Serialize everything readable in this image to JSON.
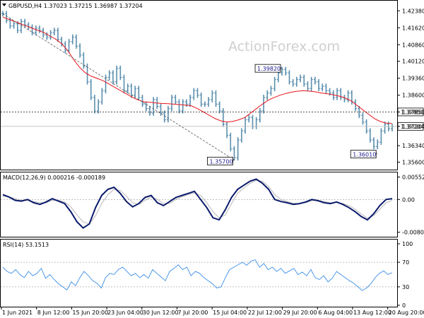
{
  "header": {
    "symbol_line": "GBPUSD,H4  1.37023 1.37215 1.36987 1.37204",
    "macd_label": "MACD(12,26,9) 0.000216 -0.000189",
    "rsi_label": "RSI(14) 53.1513"
  },
  "watermark": "ActionForex.com",
  "colors": {
    "price_bars": "#5b8fae",
    "ma_line": "#e8141b",
    "macd_main": "#0a1a6b",
    "macd_signal": "#b0b0b0",
    "rsi_line": "#3b8fe8",
    "grid_line": "#d0d0d0",
    "annotation_text": "#1a1a8c"
  },
  "chart_data": [
    {
      "type": "line",
      "panel": "price",
      "title": "GBPUSD,H4",
      "y_ticks": [
        "1.42380",
        "1.41620",
        "1.40860",
        "1.40120",
        "1.39360",
        "1.38600",
        "1.37850",
        "1.37204",
        "1.36340",
        "1.35600"
      ],
      "ylim": [
        1.353,
        1.428
      ],
      "x_ticks": [
        "1 Jun 2021",
        "8 Jun 12:00",
        "15 Jun 20:00",
        "23 Jun 04:00",
        "30 Jun 12:00",
        "7 Jul 20:00",
        "15 Jul 04:00",
        "22 Jul 12:00",
        "29 Jul 20:00",
        "6 Aug 04:00",
        "13 Aug 12:00",
        "20 Aug 20:00"
      ],
      "price_series": [
        1.4225,
        1.4195,
        1.417,
        1.418,
        1.415,
        1.419,
        1.4175,
        1.4165,
        1.414,
        1.416,
        1.415,
        1.413,
        1.412,
        1.414,
        1.415,
        1.411,
        1.409,
        1.406,
        1.41,
        1.412,
        1.408,
        1.404,
        1.399,
        1.392,
        1.385,
        1.379,
        1.383,
        1.388,
        1.394,
        1.396,
        1.392,
        1.398,
        1.394,
        1.388,
        1.39,
        1.386,
        1.389,
        1.385,
        1.382,
        1.38,
        1.378,
        1.384,
        1.381,
        1.378,
        1.375,
        1.38,
        1.385,
        1.383,
        1.379,
        1.383,
        1.382,
        1.385,
        1.388,
        1.386,
        1.382,
        1.382,
        1.384,
        1.387,
        1.382,
        1.379,
        1.373,
        1.368,
        1.362,
        1.358,
        1.366,
        1.37,
        1.375,
        1.376,
        1.372,
        1.375,
        1.379,
        1.385,
        1.387,
        1.389,
        1.393,
        1.396,
        1.3975,
        1.396,
        1.392,
        1.391,
        1.393,
        1.394,
        1.391,
        1.389,
        1.393,
        1.392,
        1.389,
        1.39,
        1.388,
        1.387,
        1.385,
        1.388,
        1.385,
        1.384,
        1.387,
        1.383,
        1.38,
        1.377,
        1.374,
        1.37,
        1.366,
        1.363,
        1.365,
        1.37,
        1.373,
        1.371,
        1.372
      ],
      "series": [
        {
          "name": "SMA",
          "values": [
            1.421,
            1.42,
            1.419,
            1.418,
            1.417,
            1.416,
            1.415,
            1.414,
            1.4125,
            1.411,
            1.409,
            1.406,
            1.402,
            1.3985,
            1.396,
            1.3945,
            1.3935,
            1.3925,
            1.391,
            1.3895,
            1.388,
            1.3865,
            1.385,
            1.3838,
            1.383,
            1.3828,
            1.3825,
            1.3823,
            1.3822,
            1.382,
            1.3818,
            1.3815,
            1.3812,
            1.38,
            1.3785,
            1.377,
            1.3755,
            1.3745,
            1.374,
            1.3743,
            1.375,
            1.376,
            1.378,
            1.38,
            1.382,
            1.3838,
            1.385,
            1.386,
            1.3868,
            1.3874,
            1.3878,
            1.388,
            1.3878,
            1.3875,
            1.387,
            1.3866,
            1.3862,
            1.3856,
            1.3848,
            1.3835,
            1.3815,
            1.3795,
            1.3775,
            1.3755,
            1.3742,
            1.3735,
            1.3733
          ]
        }
      ],
      "annotations": [
        {
          "label": "1.39820",
          "x_index": 76,
          "value": 1.3982
        },
        {
          "label": "1.35700",
          "x_index": 63,
          "value": 1.357
        },
        {
          "label": "1.36010",
          "x_index": 102,
          "value": 1.3601
        },
        {
          "label": "1.37850",
          "value": 1.3785
        },
        {
          "label": "1.37204",
          "value": 1.37204
        }
      ]
    },
    {
      "type": "line",
      "panel": "macd",
      "title": "MACD(12,26,9)",
      "y_ticks": [
        "0.00552",
        "0.00",
        "-0.00804"
      ],
      "ylim": [
        -0.0088,
        0.0063
      ],
      "series": [
        {
          "name": "MACD",
          "values": [
            0.0012,
            0.0006,
            -0.0002,
            -0.0004,
            0.0,
            -0.0008,
            -0.0012,
            -0.0006,
            0.0002,
            -0.0004,
            -0.001,
            -0.003,
            -0.0055,
            -0.007,
            -0.006,
            -0.002,
            0.001,
            0.0025,
            0.003,
            0.0015,
            -0.0005,
            -0.0018,
            -0.001,
            0.0005,
            0.001,
            -0.0008,
            -0.0015,
            -0.0005,
            0.0005,
            0.001,
            0.0015,
            0.002,
            0.0,
            -0.002,
            -0.0045,
            -0.005,
            -0.0025,
            0.0005,
            0.0025,
            0.0035,
            0.0045,
            0.005,
            0.004,
            0.0025,
            0.0,
            -0.0005,
            -0.0008,
            -0.0012,
            -0.001,
            -0.0006,
            0.0,
            -0.0003,
            -0.0008,
            -0.001,
            -0.0006,
            -0.0012,
            -0.002,
            -0.003,
            -0.0042,
            -0.005,
            -0.0035,
            -0.0015,
            0.0,
            0.0002
          ]
        },
        {
          "name": "Signal",
          "values": [
            0.0008,
            0.0007,
            0.0002,
            -0.0002,
            -0.0002,
            -0.0005,
            -0.0008,
            -0.0008,
            -0.0002,
            -0.0002,
            -0.0006,
            -0.0018,
            -0.0038,
            -0.0055,
            -0.006,
            -0.004,
            -0.001,
            0.0012,
            0.0025,
            0.0022,
            0.0008,
            -0.0008,
            -0.0012,
            -0.0002,
            0.0006,
            0.0,
            -0.001,
            -0.001,
            0.0,
            0.0007,
            0.0012,
            0.0016,
            0.001,
            -0.0008,
            -0.003,
            -0.0045,
            -0.0038,
            -0.001,
            0.0015,
            0.0028,
            0.004,
            0.0047,
            0.0045,
            0.0032,
            0.0012,
            0.0,
            -0.0005,
            -0.0009,
            -0.001,
            -0.0008,
            -0.0003,
            -0.0002,
            -0.0005,
            -0.0008,
            -0.0007,
            -0.001,
            -0.0015,
            -0.0024,
            -0.0036,
            -0.0046,
            -0.004,
            -0.0024,
            -0.0008,
            -0.0002
          ]
        }
      ]
    },
    {
      "type": "line",
      "panel": "rsi",
      "title": "RSI(14)",
      "y_ticks": [
        "100",
        "70",
        "30",
        "0"
      ],
      "ylim": [
        0,
        100
      ],
      "series": [
        {
          "name": "RSI",
          "values": [
            62,
            55,
            52,
            58,
            50,
            45,
            55,
            48,
            52,
            60,
            44,
            50,
            42,
            35,
            30,
            25,
            38,
            32,
            45,
            55,
            48,
            40,
            36,
            28,
            45,
            52,
            50,
            58,
            62,
            55,
            48,
            52,
            45,
            50,
            44,
            58,
            52,
            46,
            40,
            55,
            60,
            66,
            58,
            62,
            48,
            55,
            52,
            45,
            40,
            35,
            28,
            30,
            45,
            58,
            62,
            66,
            70,
            65,
            72,
            74,
            62,
            68,
            58,
            62,
            55,
            60,
            52,
            56,
            60,
            50,
            54,
            48,
            58,
            45,
            42,
            48,
            38,
            44,
            55,
            50,
            45,
            40,
            36,
            30,
            24,
            28,
            35,
            45,
            52,
            56,
            50,
            53
          ]
        }
      ]
    }
  ]
}
